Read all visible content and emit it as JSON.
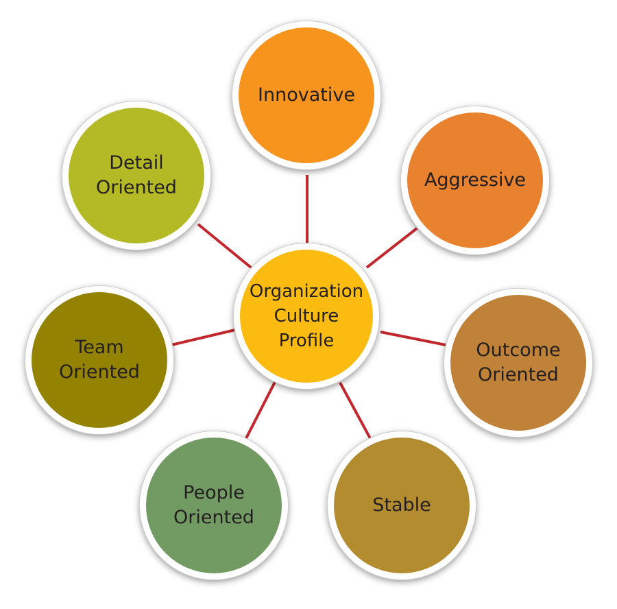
{
  "diagram": {
    "center": {
      "label": "Organization\nCulture\nProfile",
      "color": "#fbbb10"
    },
    "outer": [
      {
        "id": "innovative",
        "label": "Innovative",
        "color": "#f7941d"
      },
      {
        "id": "aggressive",
        "label": "Aggressive",
        "color": "#e9822f"
      },
      {
        "id": "outcome-oriented",
        "label": "Outcome\nOriented",
        "color": "#c08239"
      },
      {
        "id": "stable",
        "label": "Stable",
        "color": "#b38c2f"
      },
      {
        "id": "people-oriented",
        "label": "People\nOriented",
        "color": "#729b63"
      },
      {
        "id": "team-oriented",
        "label": "Team\nOriented",
        "color": "#948303"
      },
      {
        "id": "detail-oriented",
        "label": "Detail\nOriented",
        "color": "#b3ba25"
      }
    ],
    "connector_color": "#c1272d"
  }
}
